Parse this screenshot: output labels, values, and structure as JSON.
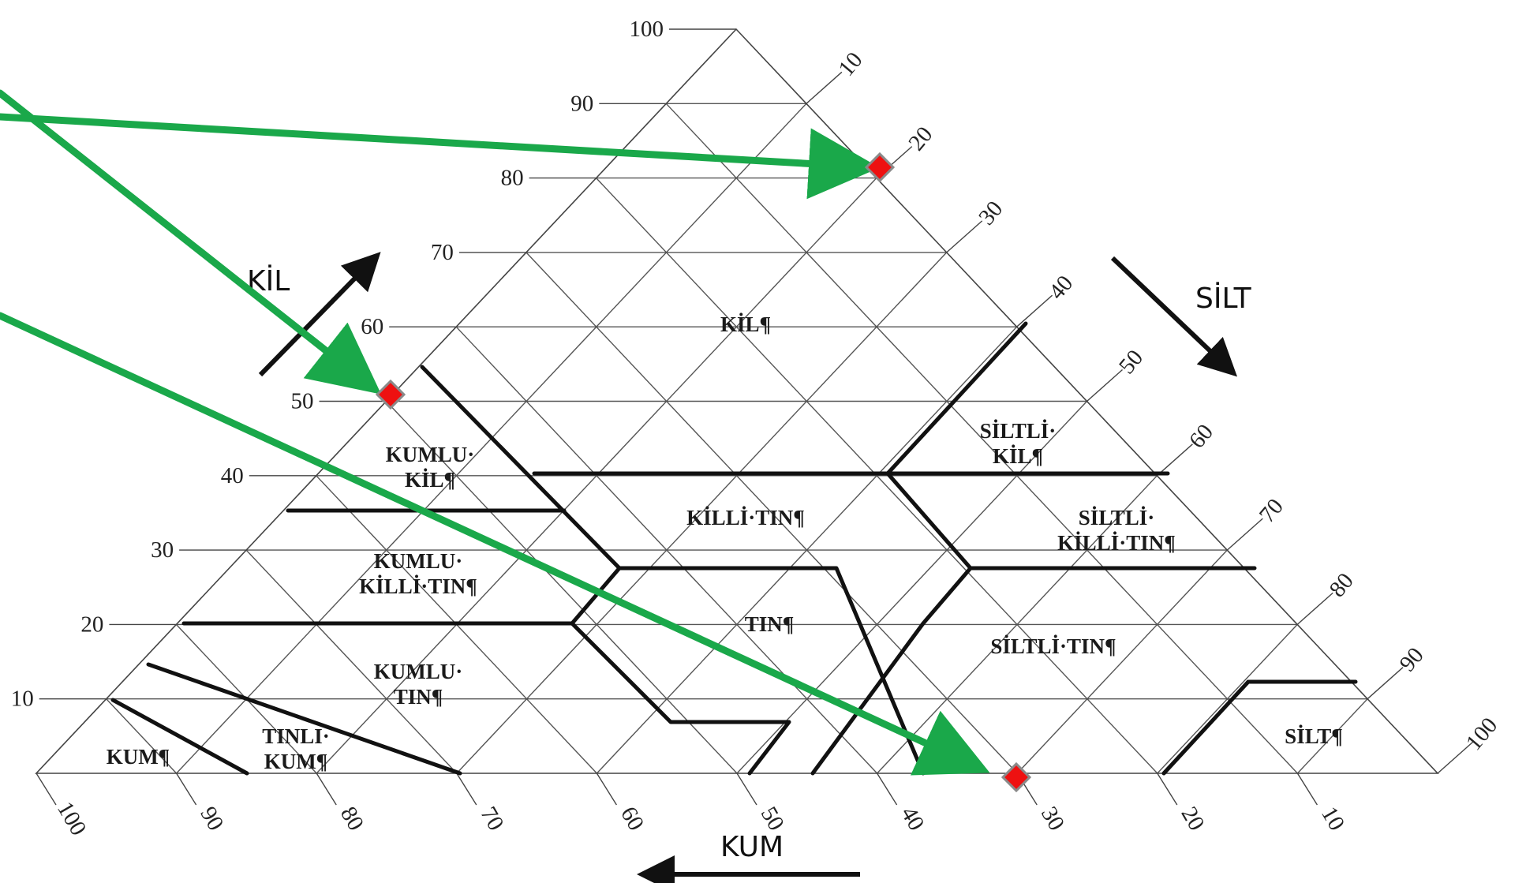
{
  "axis_titles": {
    "clay": "KİL",
    "silt": "SİLT",
    "sand": "KUM"
  },
  "ticks": {
    "clay": [
      "10",
      "20",
      "30",
      "40",
      "50",
      "60",
      "70",
      "80",
      "90",
      "100"
    ],
    "silt": [
      "10",
      "20",
      "30",
      "40",
      "50",
      "60",
      "70",
      "80",
      "90",
      "100"
    ],
    "sand": [
      "100",
      "90",
      "80",
      "70",
      "60",
      "50",
      "40",
      "30",
      "20",
      "10"
    ]
  },
  "regions": {
    "kil": [
      "KİL¶"
    ],
    "kumlu_kil": [
      "KUMLU·",
      "KİL¶"
    ],
    "siltli_kil": [
      "SİLTLİ·",
      "KİL¶"
    ],
    "killi_tin": [
      "KİLLİ·TIN¶"
    ],
    "kumlu_killi_tin": [
      "KUMLU·",
      "KİLLİ·TIN¶"
    ],
    "siltli_killi_tin": [
      "SİLTLİ·",
      "KİLLİ·TIN¶"
    ],
    "tin": [
      "TIN¶"
    ],
    "siltli_tin": [
      "SİLTLİ·TIN¶"
    ],
    "kumlu_tin": [
      "KUMLU·",
      "TIN¶"
    ],
    "tinli_kum": [
      "TINLI·",
      "KUM¶"
    ],
    "kum": [
      "KUM¶"
    ],
    "silt": [
      "SİLT¶"
    ]
  },
  "colors": {
    "arrow": "#1aa84a",
    "marker_fill": "#ee1111",
    "marker_border": "#8a8a8a",
    "grid": "#555555",
    "boundary": "#111111"
  }
}
